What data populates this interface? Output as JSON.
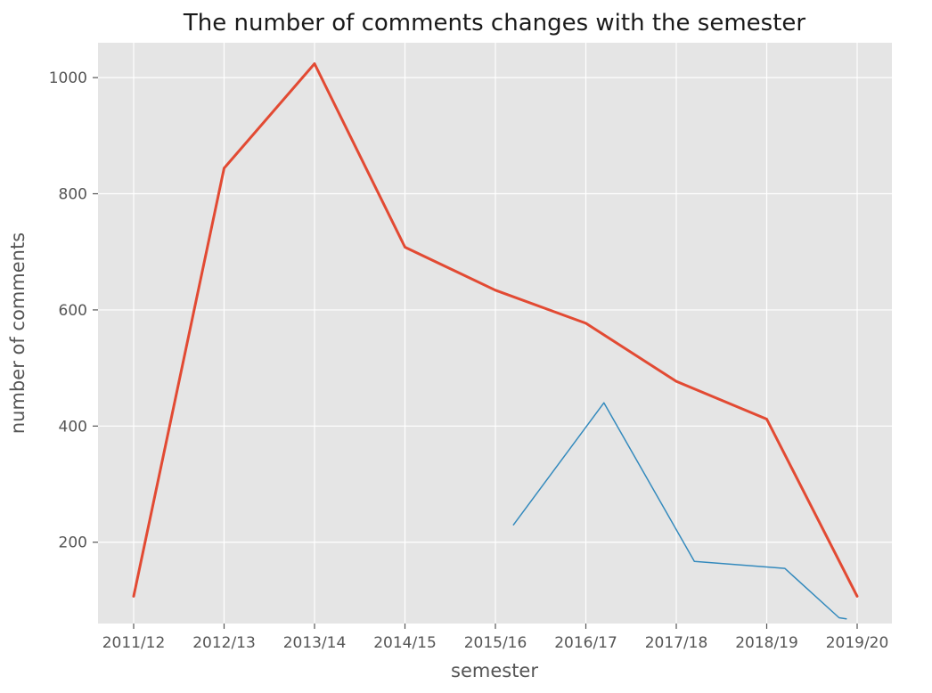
{
  "chart_data": {
    "type": "line",
    "title": "The number of comments changes with the semester",
    "xlabel": "semester",
    "ylabel": "number of comments",
    "categories": [
      "2011/12",
      "2012/13",
      "2013/14",
      "2014/15",
      "2015/16",
      "2016/17",
      "2017/18",
      "2018/19",
      "2019/20"
    ],
    "yticks": [
      200,
      400,
      600,
      800,
      1000
    ],
    "ylim": [
      60,
      1060
    ],
    "grid": true,
    "series": [
      {
        "color": "#e24a33",
        "x": [
          0,
          1,
          2,
          3,
          4,
          5,
          6,
          7,
          8
        ],
        "values": [
          107,
          844,
          1024,
          708,
          634,
          577,
          477,
          412,
          107
        ]
      },
      {
        "color": "#348abd",
        "x": [
          4.2,
          5.2,
          6.2,
          7.2,
          7.8,
          7.88
        ],
        "values": [
          230,
          440,
          167,
          155,
          70,
          68
        ]
      }
    ]
  }
}
